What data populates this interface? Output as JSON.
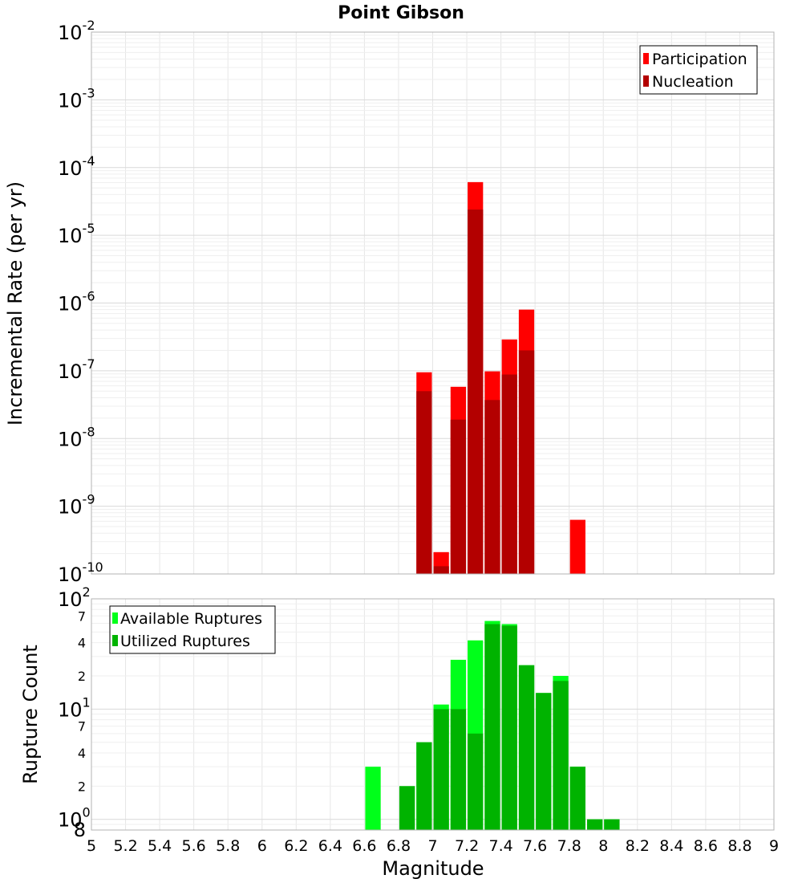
{
  "colors": {
    "participation": "#ff0000",
    "nucleation": "#b30000",
    "available": "#00ff1a",
    "utilized": "#00b300",
    "grid": "#e6e6e6",
    "frame": "#b3b3b3"
  },
  "chart_data": [
    {
      "type": "bar",
      "title": "Point Gibson",
      "xlabel": "Magnitude",
      "ylabel": "Incremental Rate (per yr)",
      "xlim": [
        5,
        9
      ],
      "ylim": [
        1e-10,
        0.01
      ],
      "yscale": "log",
      "legend_position": "top-right",
      "grid": true,
      "series": [
        {
          "name": "Participation",
          "color": "#ff0000",
          "points": [
            {
              "x": 6.95,
              "y": 9.5e-08
            },
            {
              "x": 7.05,
              "y": 2.1e-10
            },
            {
              "x": 7.15,
              "y": 5.8e-08
            },
            {
              "x": 7.25,
              "y": 6.1e-05
            },
            {
              "x": 7.35,
              "y": 9.8e-08
            },
            {
              "x": 7.45,
              "y": 2.9e-07
            },
            {
              "x": 7.55,
              "y": 8e-07
            },
            {
              "x": 7.85,
              "y": 6.3e-10
            }
          ]
        },
        {
          "name": "Nucleation",
          "color": "#b30000",
          "points": [
            {
              "x": 6.95,
              "y": 5e-08
            },
            {
              "x": 7.05,
              "y": 1.3e-10
            },
            {
              "x": 7.15,
              "y": 1.9e-08
            },
            {
              "x": 7.25,
              "y": 2.4e-05
            },
            {
              "x": 7.35,
              "y": 3.7e-08
            },
            {
              "x": 7.45,
              "y": 8.8e-08
            },
            {
              "x": 7.55,
              "y": 2e-07
            }
          ]
        }
      ],
      "y_tick_exponents": [
        "-2",
        "-3",
        "-4",
        "-5",
        "-6",
        "-7",
        "-8",
        "-9",
        "-10"
      ]
    },
    {
      "type": "bar",
      "xlabel": "Magnitude",
      "ylabel": "Rupture Count",
      "xlim": [
        5,
        9
      ],
      "ylim": [
        0.8,
        100
      ],
      "yscale": "log",
      "legend_position": "top-left",
      "grid": true,
      "series": [
        {
          "name": "Available Ruptures",
          "color": "#00ff1a",
          "points": [
            {
              "x": 6.65,
              "y": 3
            },
            {
              "x": 6.85,
              "y": 2
            },
            {
              "x": 6.95,
              "y": 5
            },
            {
              "x": 7.05,
              "y": 11
            },
            {
              "x": 7.15,
              "y": 28
            },
            {
              "x": 7.25,
              "y": 42
            },
            {
              "x": 7.35,
              "y": 63
            },
            {
              "x": 7.45,
              "y": 59
            },
            {
              "x": 7.55,
              "y": 25
            },
            {
              "x": 7.65,
              "y": 14
            },
            {
              "x": 7.75,
              "y": 20
            },
            {
              "x": 7.85,
              "y": 3
            },
            {
              "x": 7.95,
              "y": 1
            },
            {
              "x": 8.05,
              "y": 1
            }
          ]
        },
        {
          "name": "Utilized Ruptures",
          "color": "#00b300",
          "points": [
            {
              "x": 6.85,
              "y": 2
            },
            {
              "x": 6.95,
              "y": 5
            },
            {
              "x": 7.05,
              "y": 10
            },
            {
              "x": 7.15,
              "y": 10
            },
            {
              "x": 7.25,
              "y": 6
            },
            {
              "x": 7.35,
              "y": 59
            },
            {
              "x": 7.45,
              "y": 57
            },
            {
              "x": 7.55,
              "y": 25
            },
            {
              "x": 7.65,
              "y": 14
            },
            {
              "x": 7.75,
              "y": 18
            },
            {
              "x": 7.85,
              "y": 3
            },
            {
              "x": 7.95,
              "y": 1
            },
            {
              "x": 8.05,
              "y": 1
            }
          ]
        }
      ],
      "y_major_ticks": [
        {
          "base": "10",
          "exp": "2"
        },
        {
          "base": "10",
          "exp": "1"
        },
        {
          "base": "10",
          "exp": "0"
        }
      ],
      "y_minor_labels": [
        {
          "value": 70,
          "label": "7"
        },
        {
          "value": 40,
          "label": "4"
        },
        {
          "value": 20,
          "label": "2"
        },
        {
          "value": 7,
          "label": "7"
        },
        {
          "value": 4,
          "label": "4"
        },
        {
          "value": 2,
          "label": "2"
        },
        {
          "value": 0.8,
          "label": "8"
        }
      ]
    }
  ],
  "x_ticks": [
    "5",
    "5.2",
    "5.4",
    "5.6",
    "5.8",
    "6",
    "6.2",
    "6.4",
    "6.6",
    "6.8",
    "7",
    "7.2",
    "7.4",
    "7.6",
    "7.8",
    "8",
    "8.2",
    "8.4",
    "8.6",
    "8.8",
    "9"
  ]
}
